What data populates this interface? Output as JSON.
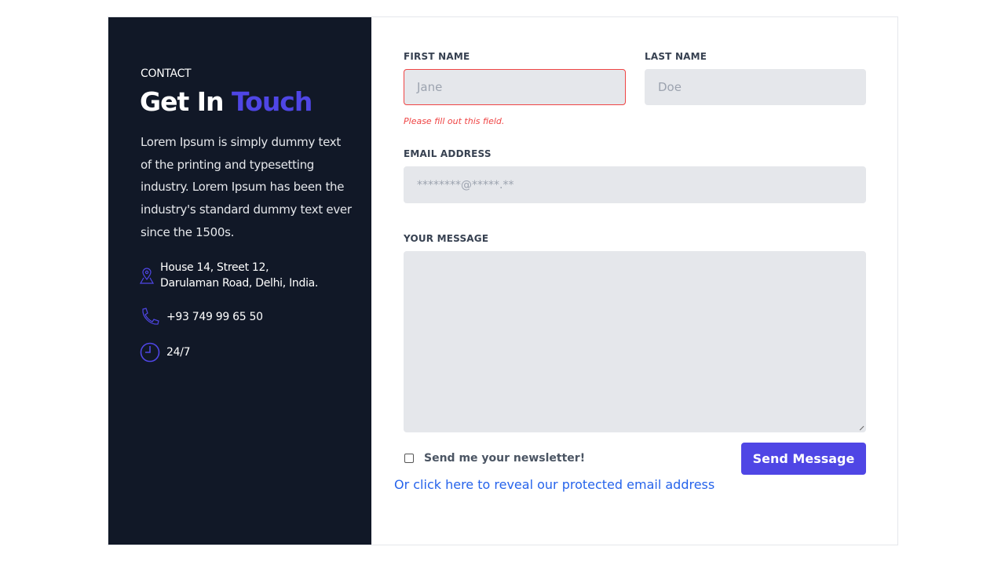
{
  "left": {
    "kicker": "CONTACT",
    "title_main": "Get In",
    "title_accent": "Touch",
    "description": "Lorem Ipsum is simply dummy text of the printing and typesetting industry. Lorem Ipsum has been the industry's standard dummy text ever since the 1500s.",
    "address": "House 14, Street 12, Darulaman Road, Delhi, India.",
    "phone": "+93 749 99 65 50",
    "hours": "24/7",
    "icons": [
      "map-pin-icon",
      "phone-icon",
      "clock-icon"
    ]
  },
  "form": {
    "first_name": {
      "label": "FIRST NAME",
      "placeholder": "Jane",
      "error": "Please fill out this field."
    },
    "last_name": {
      "label": "LAST NAME",
      "placeholder": "Doe"
    },
    "email": {
      "label": "EMAIL ADDRESS",
      "placeholder": "********@*****.**"
    },
    "message": {
      "label": "YOUR MESSAGE",
      "placeholder": ""
    },
    "newsletter_label": "Send me your newsletter!",
    "newsletter_checked": false,
    "submit_label": "Send Message",
    "reveal_link": "Or click here to reveal our protected email address"
  },
  "colors": {
    "panel": "#111827",
    "accent": "#4f46e5",
    "error": "#ef4444",
    "link": "#2563eb"
  }
}
